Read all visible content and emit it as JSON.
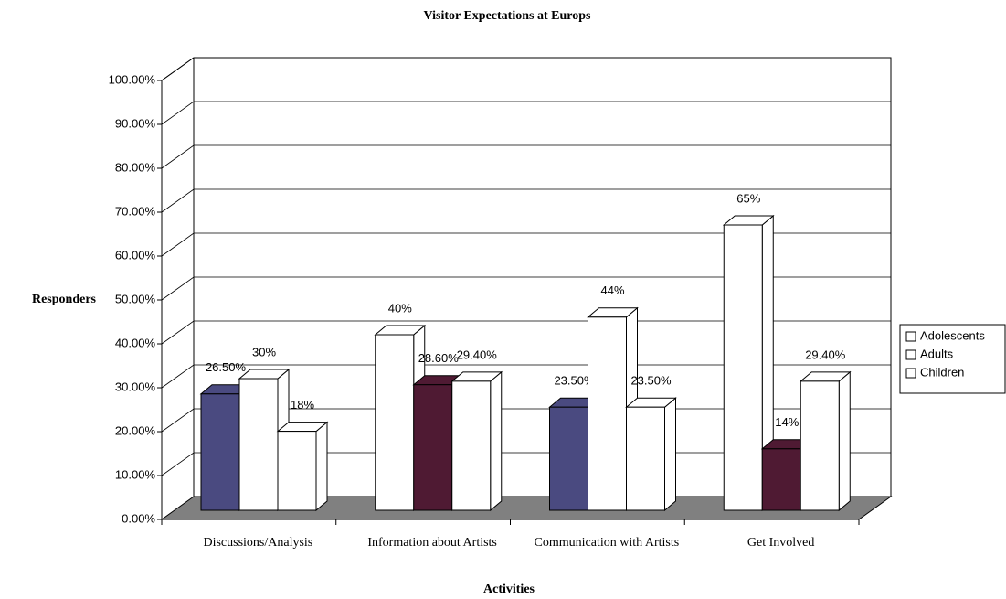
{
  "chart_data": {
    "type": "bar3d",
    "title": "Visitor Expectations at Europs",
    "x_label": "Activities",
    "y_label": "Responders",
    "categories": [
      "Discussions/Analysis",
      "Information about Artists",
      "Communication with Artists",
      "Get Involved"
    ],
    "series": [
      {
        "name": "Adolescents",
        "color": "#ffffff",
        "point_colors": [
          "#4a4a80",
          "#ffffff",
          "#4a4a80",
          "#ffffff"
        ],
        "values": [
          26.5,
          40,
          23.5,
          65
        ],
        "value_labels": [
          "26.50%",
          "40%",
          "23.50%",
          "65%"
        ]
      },
      {
        "name": "Adults",
        "color": "#ffffff",
        "point_colors": [
          "#ffffff",
          "#4f1a33",
          "#ffffff",
          "#4f1a33"
        ],
        "values": [
          30,
          28.6,
          44,
          14
        ],
        "value_labels": [
          "30%",
          "28.60%",
          "44%",
          "14%"
        ]
      },
      {
        "name": "Children",
        "color": "#ffffff",
        "point_colors": [
          "#ffffff",
          "#ffffff",
          "#ffffff",
          "#ffffff"
        ],
        "values": [
          18,
          29.4,
          23.5,
          29.4
        ],
        "value_labels": [
          "18%",
          "29.40%",
          "23.50%",
          "29.40%"
        ]
      }
    ],
    "ylim": [
      0,
      100
    ],
    "yticks": [
      {
        "value": 0,
        "label": "0.00%"
      },
      {
        "value": 10,
        "label": "10.00%"
      },
      {
        "value": 20,
        "label": "20.00%"
      },
      {
        "value": 30,
        "label": "30.00%"
      },
      {
        "value": 40,
        "label": "40.00%"
      },
      {
        "value": 50,
        "label": "50.00%"
      },
      {
        "value": 60,
        "label": "60.00%"
      },
      {
        "value": 70,
        "label": "70.00%"
      },
      {
        "value": 80,
        "label": "80.00%"
      },
      {
        "value": 90,
        "label": "90.00%"
      },
      {
        "value": 100,
        "label": "100.00%"
      }
    ],
    "grid": true,
    "legend": "right"
  }
}
